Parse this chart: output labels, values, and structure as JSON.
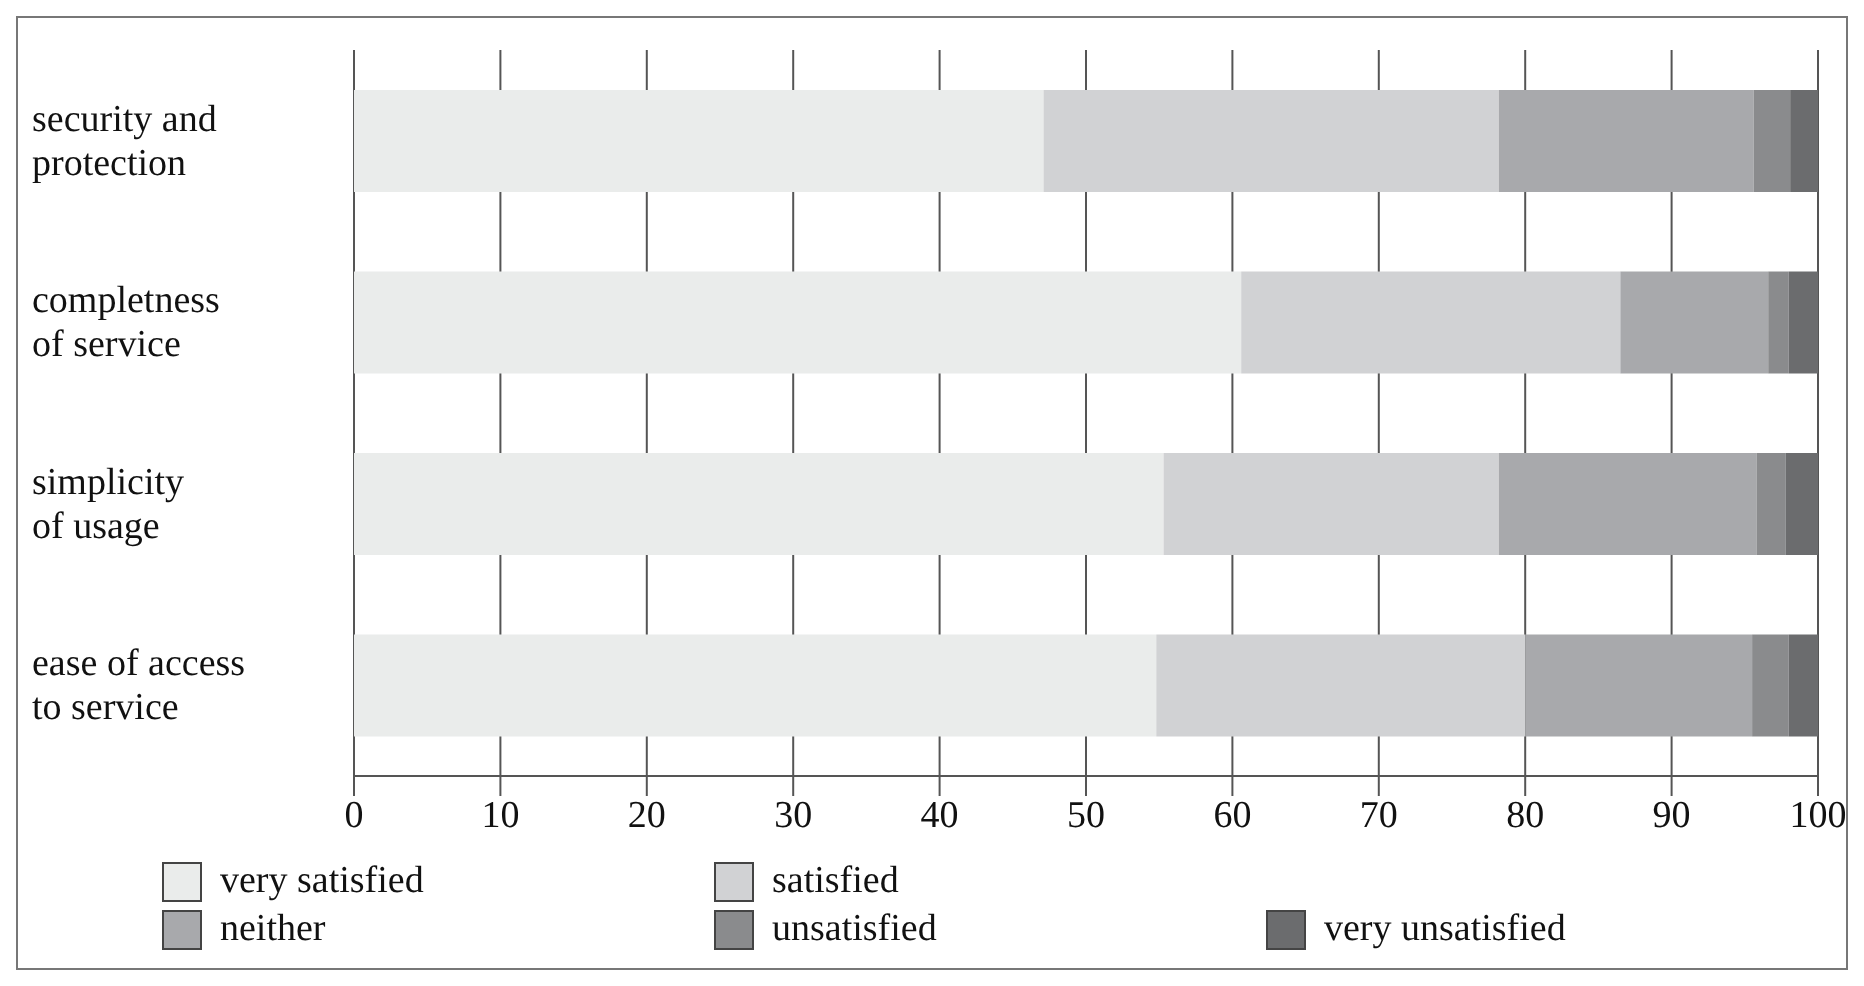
{
  "chart_data": {
    "type": "bar",
    "orientation": "horizontal",
    "stacked": true,
    "categories": [
      "security and protection",
      "completness of service",
      "simplicity of usage",
      "ease of access to service"
    ],
    "series": [
      {
        "name": "very satisfied",
        "color": "#eaeceb",
        "values": [
          47.1,
          60.6,
          55.3,
          54.8
        ]
      },
      {
        "name": "satisfied",
        "color": "#d1d2d4",
        "values": [
          31.1,
          25.9,
          22.9,
          25.2
        ]
      },
      {
        "name": "neither",
        "color": "#a8a9ac",
        "values": [
          17.4,
          10.1,
          17.6,
          15.5
        ]
      },
      {
        "name": "unsatisfied",
        "color": "#8a8b8d",
        "values": [
          2.5,
          1.4,
          2.0,
          2.5
        ]
      },
      {
        "name": "very unsatisfied",
        "color": "#6b6c6e",
        "values": [
          1.9,
          2.0,
          2.2,
          2.0
        ]
      }
    ],
    "xlim": [
      0,
      100
    ],
    "xticks": [
      0,
      10,
      20,
      30,
      40,
      50,
      60,
      70,
      80,
      90,
      100
    ],
    "grid": "x",
    "legend": "bottom"
  }
}
